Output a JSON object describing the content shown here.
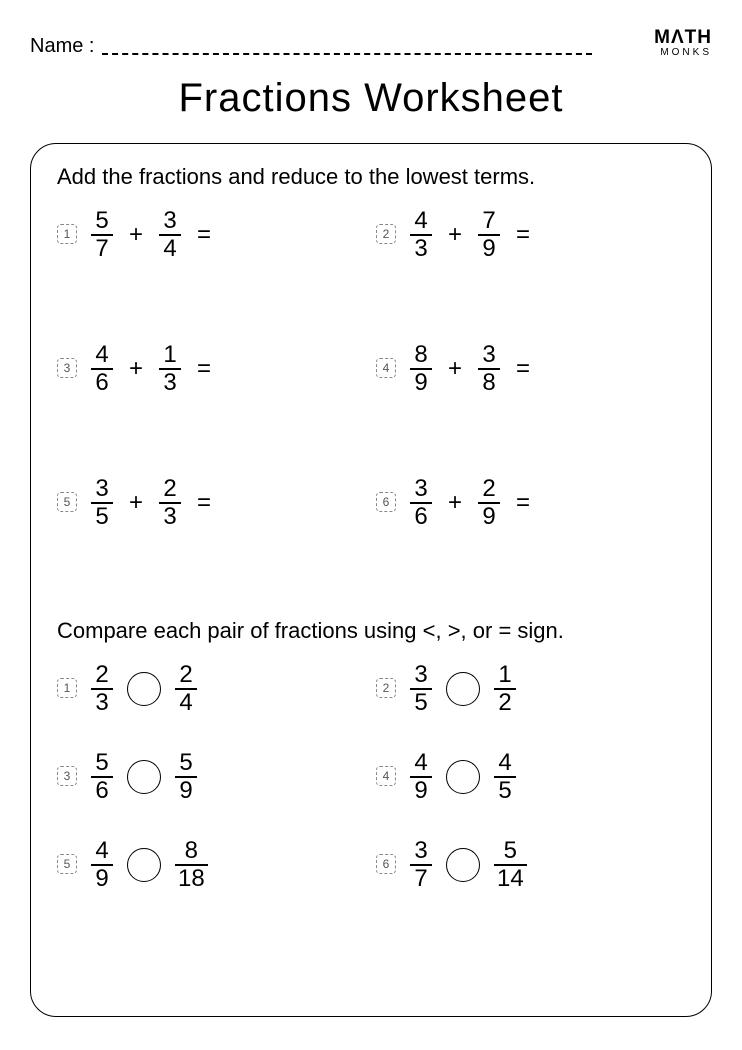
{
  "header": {
    "name_label": "Name :",
    "logo_top": "MΛTH",
    "logo_sub": "MONKS"
  },
  "title": "Fractions Worksheet",
  "section1": {
    "instruction": "Add the fractions and reduce to the lowest terms.",
    "problems": [
      {
        "n": "1",
        "a_num": "5",
        "a_den": "7",
        "b_num": "3",
        "b_den": "4"
      },
      {
        "n": "2",
        "a_num": "4",
        "a_den": "3",
        "b_num": "7",
        "b_den": "9"
      },
      {
        "n": "3",
        "a_num": "4",
        "a_den": "6",
        "b_num": "1",
        "b_den": "3"
      },
      {
        "n": "4",
        "a_num": "8",
        "a_den": "9",
        "b_num": "3",
        "b_den": "8"
      },
      {
        "n": "5",
        "a_num": "3",
        "a_den": "5",
        "b_num": "2",
        "b_den": "3"
      },
      {
        "n": "6",
        "a_num": "3",
        "a_den": "6",
        "b_num": "2",
        "b_den": "9"
      }
    ]
  },
  "section2": {
    "instruction": "Compare each pair of fractions using <, >, or = sign.",
    "problems": [
      {
        "n": "1",
        "a_num": "2",
        "a_den": "3",
        "b_num": "2",
        "b_den": "4"
      },
      {
        "n": "2",
        "a_num": "3",
        "a_den": "5",
        "b_num": "1",
        "b_den": "2"
      },
      {
        "n": "3",
        "a_num": "5",
        "a_den": "6",
        "b_num": "5",
        "b_den": "9"
      },
      {
        "n": "4",
        "a_num": "4",
        "a_den": "9",
        "b_num": "4",
        "b_den": "5"
      },
      {
        "n": "5",
        "a_num": "4",
        "a_den": "9",
        "b_num": "8",
        "b_den": "18"
      },
      {
        "n": "6",
        "a_num": "3",
        "a_den": "7",
        "b_num": "5",
        "b_den": "14"
      }
    ]
  },
  "symbols": {
    "plus": "+",
    "equals": "="
  }
}
